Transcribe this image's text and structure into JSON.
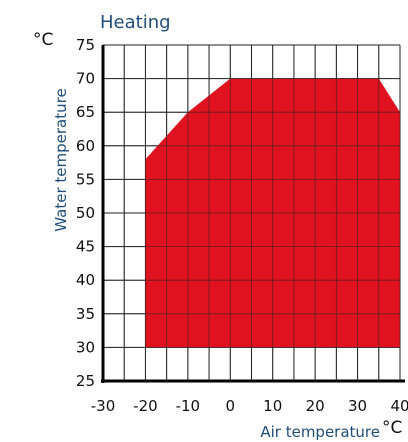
{
  "chart_data": {
    "type": "area",
    "title": "Heating",
    "xlabel": "Air temperature",
    "ylabel": "Water temperature",
    "x_unit": "°C",
    "y_unit": "°C",
    "xlim": [
      -30,
      40
    ],
    "ylim": [
      25,
      75
    ],
    "x_ticks": [
      "-30",
      "-20",
      "-10",
      "0",
      "10",
      "20",
      "30",
      "40"
    ],
    "y_ticks": [
      "25",
      "30",
      "35",
      "40",
      "45",
      "50",
      "55",
      "60",
      "65",
      "70",
      "75"
    ],
    "grid": true,
    "fill_color": "#e0121f",
    "series": [
      {
        "points": [
          {
            "x": -20,
            "y": 30
          },
          {
            "x": -20,
            "y": 58
          },
          {
            "x": -10,
            "y": 65
          },
          {
            "x": 0,
            "y": 70
          },
          {
            "x": 35,
            "y": 70
          },
          {
            "x": 40,
            "y": 65
          },
          {
            "x": 40,
            "y": 30
          }
        ]
      }
    ]
  }
}
